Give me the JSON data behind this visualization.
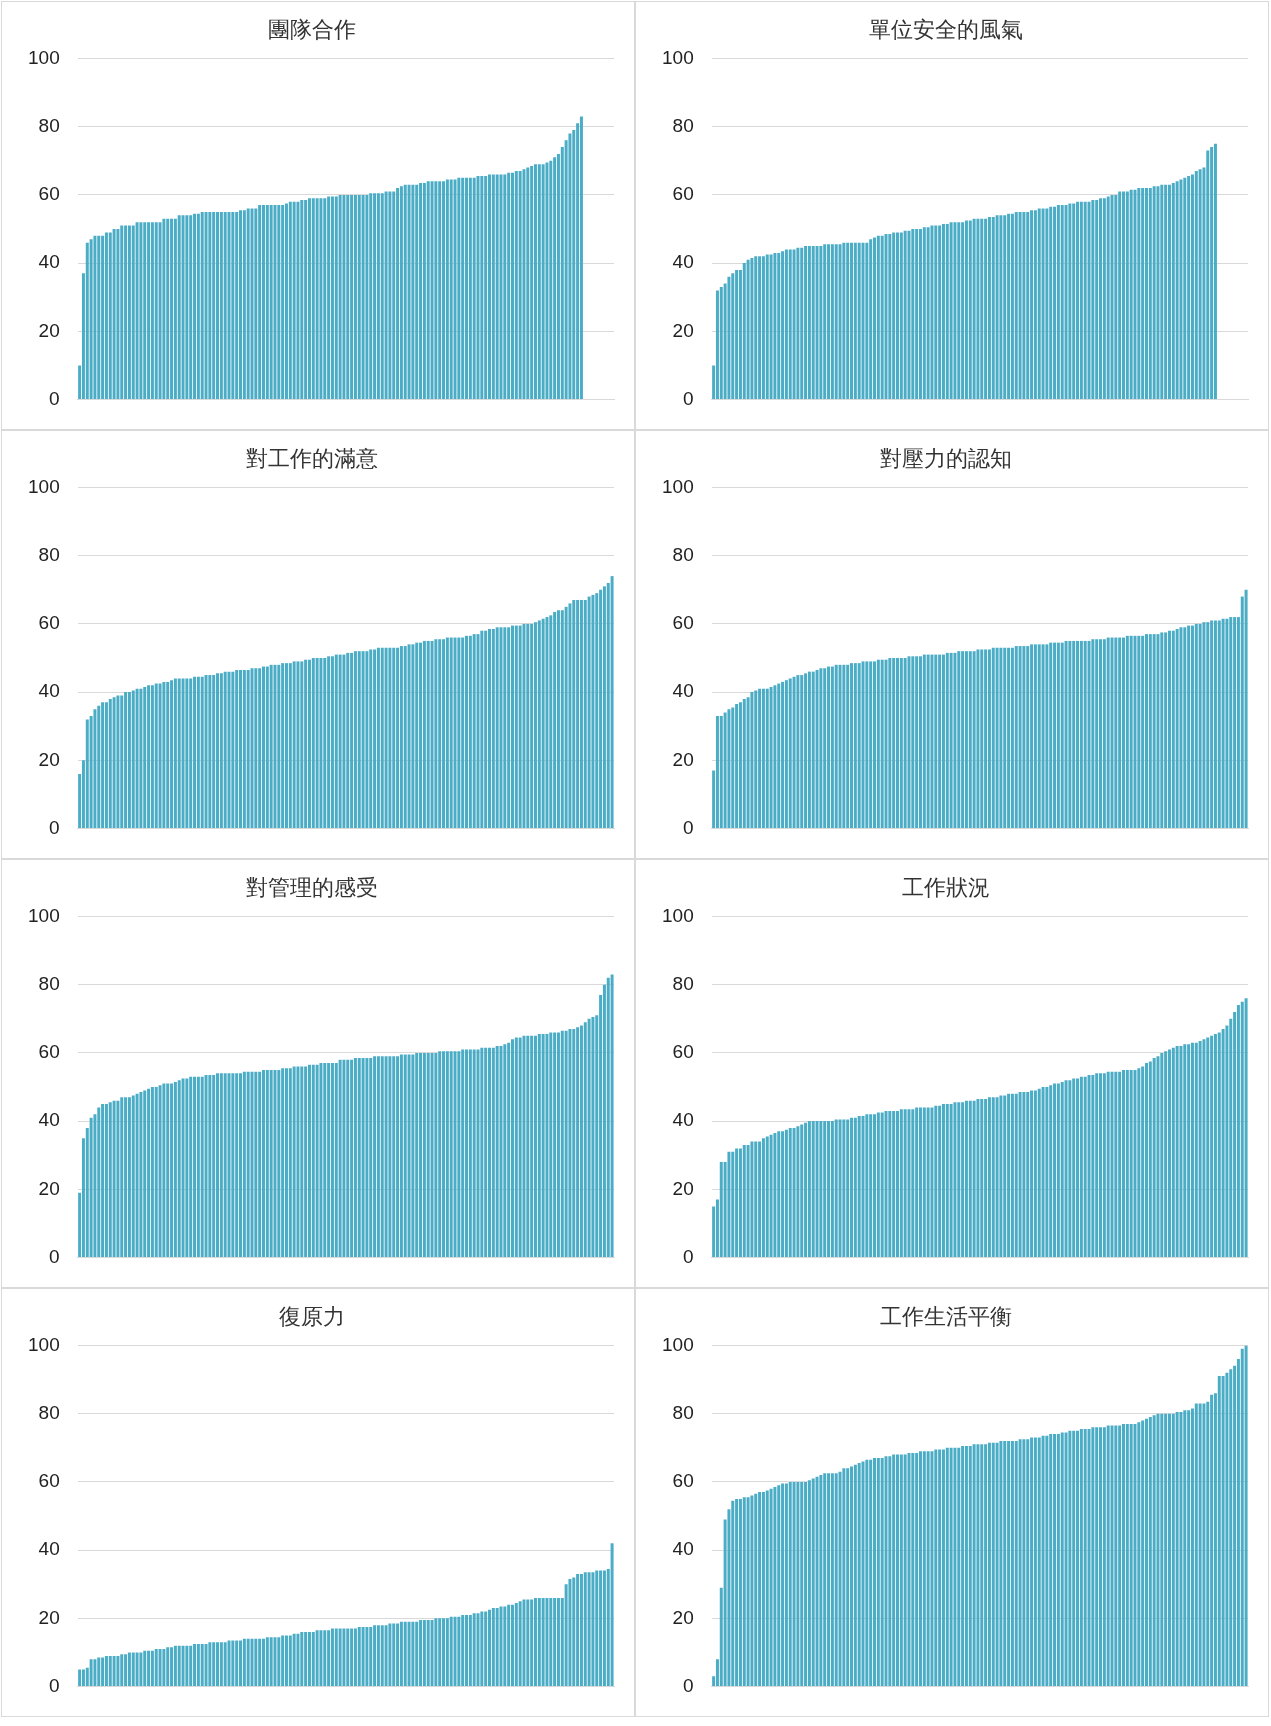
{
  "chart_data": [
    {
      "type": "bar",
      "title": "團隊合作",
      "color": "#4bacc6",
      "ylim": [
        0,
        100
      ],
      "yticks": [
        0,
        20,
        40,
        60,
        80,
        100
      ],
      "grid": "y",
      "tick_labels": "y",
      "categories": [
        null,
        null,
        null,
        null,
        null,
        null,
        null,
        null,
        null,
        null,
        null,
        null,
        null,
        null,
        null,
        null,
        null,
        null,
        null,
        null,
        null,
        null,
        null,
        null,
        null,
        null,
        null,
        null,
        null,
        null,
        null,
        null,
        null,
        null,
        null,
        null,
        null,
        null,
        null,
        null,
        null,
        null,
        null,
        null,
        null,
        null,
        null,
        null,
        null,
        null,
        null,
        null,
        null,
        null,
        null,
        null,
        null,
        null,
        null,
        null,
        null,
        null,
        null,
        null,
        null,
        null,
        null,
        null,
        null,
        null,
        null,
        null,
        null,
        null,
        null,
        null,
        null,
        null,
        null,
        null,
        null,
        null,
        null,
        null,
        null,
        null,
        null,
        null,
        null,
        null,
        null,
        null,
        null,
        null,
        null,
        null,
        null,
        null,
        null,
        null,
        null,
        null,
        null,
        null,
        null,
        null,
        null,
        null,
        null,
        null,
        null,
        null,
        null,
        null,
        null,
        null,
        null,
        null,
        null,
        null,
        null,
        null,
        null,
        null,
        null,
        null,
        null,
        null,
        null,
        null,
        null,
        null,
        null,
        null,
        null,
        null,
        null,
        null,
        null,
        null
      ],
      "values": [
        10,
        37,
        46,
        47,
        48,
        48,
        48,
        49,
        49,
        50,
        50,
        51,
        51,
        51,
        51,
        52,
        52,
        52,
        52,
        52,
        52,
        52,
        53,
        53,
        53,
        53,
        54,
        54,
        54,
        54,
        54.5,
        54.5,
        55,
        55,
        55,
        55,
        55,
        55,
        55,
        55,
        55,
        55,
        55.5,
        55.5,
        56,
        56,
        56,
        57,
        57,
        57,
        57,
        57,
        57,
        57,
        57.5,
        58,
        58,
        58,
        58.5,
        58.5,
        59,
        59,
        59,
        59,
        59,
        59.5,
        59.5,
        59.5,
        60,
        60,
        60,
        60,
        60,
        60,
        60,
        60,
        60.5,
        60.5,
        60.5,
        60.5,
        61,
        61,
        61,
        62,
        62.5,
        63,
        63,
        63,
        63,
        63.5,
        63.5,
        64,
        64,
        64,
        64,
        64,
        64.5,
        64.5,
        64.5,
        65,
        65,
        65,
        65,
        65,
        65.5,
        65.5,
        65.5,
        66,
        66,
        66,
        66,
        66,
        66.5,
        66.5,
        67,
        67,
        67.5,
        68,
        68.5,
        69,
        69,
        69,
        69.5,
        70,
        71,
        72,
        74,
        76,
        78,
        79,
        81,
        83,
        null,
        null,
        null,
        null,
        null,
        null,
        null,
        null
      ]
    },
    {
      "type": "bar",
      "title": "單位安全的風氣",
      "color": "#4bacc6",
      "ylim": [
        0,
        100
      ],
      "yticks": [
        0,
        20,
        40,
        60,
        80,
        100
      ],
      "grid": "y",
      "tick_labels": "y",
      "categories": [
        null,
        null,
        null,
        null,
        null,
        null,
        null,
        null,
        null,
        null,
        null,
        null,
        null,
        null,
        null,
        null,
        null,
        null,
        null,
        null,
        null,
        null,
        null,
        null,
        null,
        null,
        null,
        null,
        null,
        null,
        null,
        null,
        null,
        null,
        null,
        null,
        null,
        null,
        null,
        null,
        null,
        null,
        null,
        null,
        null,
        null,
        null,
        null,
        null,
        null,
        null,
        null,
        null,
        null,
        null,
        null,
        null,
        null,
        null,
        null,
        null,
        null,
        null,
        null,
        null,
        null,
        null,
        null,
        null,
        null,
        null,
        null,
        null,
        null,
        null,
        null,
        null,
        null,
        null,
        null,
        null,
        null,
        null,
        null,
        null,
        null,
        null,
        null,
        null,
        null,
        null,
        null,
        null,
        null,
        null,
        null,
        null,
        null,
        null,
        null,
        null,
        null,
        null,
        null,
        null,
        null,
        null,
        null,
        null,
        null,
        null,
        null,
        null,
        null,
        null,
        null,
        null,
        null,
        null,
        null,
        null,
        null,
        null,
        null,
        null,
        null,
        null,
        null,
        null,
        null,
        null,
        null,
        null,
        null,
        null,
        null,
        null,
        null,
        null,
        null
      ],
      "values": [
        10,
        32,
        33,
        34,
        36,
        37,
        38,
        38,
        40,
        41,
        41.5,
        42,
        42,
        42,
        42.5,
        42.5,
        43,
        43,
        43.5,
        44,
        44,
        44,
        44.5,
        44.5,
        45,
        45,
        45,
        45,
        45,
        45.5,
        45.5,
        45.5,
        45.5,
        45.5,
        46,
        46,
        46,
        46,
        46,
        46,
        46,
        47,
        47.5,
        48,
        48,
        48.5,
        48.5,
        49,
        49,
        49,
        49.5,
        49.5,
        50,
        50,
        50,
        50.5,
        50.5,
        51,
        51,
        51,
        51.5,
        51.5,
        52,
        52,
        52,
        52,
        52.5,
        52.5,
        53,
        53,
        53,
        53,
        53.5,
        53.5,
        54,
        54,
        54,
        54.5,
        54.5,
        55,
        55,
        55,
        55,
        55.5,
        55.5,
        56,
        56,
        56,
        56.5,
        56.5,
        57,
        57,
        57,
        57.5,
        57.5,
        58,
        58,
        58,
        58,
        58.5,
        58.5,
        59,
        59,
        59.5,
        60,
        60,
        61,
        61,
        61,
        61.5,
        61.5,
        62,
        62,
        62,
        62,
        62.5,
        62.5,
        63,
        63,
        63,
        63.5,
        64,
        64.5,
        65,
        65.5,
        66,
        67,
        67.5,
        68,
        73,
        74,
        75,
        null,
        null,
        null,
        null,
        null,
        null,
        null,
        null
      ]
    },
    {
      "type": "bar",
      "title": "對工作的滿意",
      "color": "#4bacc6",
      "ylim": [
        0,
        100
      ],
      "yticks": [
        0,
        20,
        40,
        60,
        80,
        100
      ],
      "grid": "y",
      "tick_labels": "y",
      "categories": [
        null,
        null,
        null,
        null,
        null,
        null,
        null,
        null,
        null,
        null,
        null,
        null,
        null,
        null,
        null,
        null,
        null,
        null,
        null,
        null,
        null,
        null,
        null,
        null,
        null,
        null,
        null,
        null,
        null,
        null,
        null,
        null,
        null,
        null,
        null,
        null,
        null,
        null,
        null,
        null,
        null,
        null,
        null,
        null,
        null,
        null,
        null,
        null,
        null,
        null,
        null,
        null,
        null,
        null,
        null,
        null,
        null,
        null,
        null,
        null,
        null,
        null,
        null,
        null,
        null,
        null,
        null,
        null,
        null,
        null,
        null,
        null,
        null,
        null,
        null,
        null,
        null,
        null,
        null,
        null,
        null,
        null,
        null,
        null,
        null,
        null,
        null,
        null,
        null,
        null,
        null,
        null,
        null,
        null,
        null,
        null,
        null,
        null,
        null,
        null,
        null,
        null,
        null,
        null,
        null,
        null,
        null,
        null,
        null,
        null,
        null,
        null,
        null,
        null,
        null,
        null,
        null,
        null,
        null,
        null,
        null,
        null,
        null,
        null,
        null,
        null,
        null,
        null,
        null,
        null,
        null,
        null,
        null,
        null,
        null,
        null,
        null,
        null,
        null,
        null
      ],
      "values": [
        16,
        20,
        32,
        33,
        35,
        36,
        37,
        37,
        38,
        38.5,
        39,
        39,
        40,
        40,
        40.5,
        41,
        41,
        41.5,
        42,
        42,
        42.5,
        42.5,
        43,
        43,
        43.5,
        44,
        44,
        44,
        44,
        44,
        44.5,
        44.5,
        44.5,
        45,
        45,
        45,
        45.5,
        45.5,
        46,
        46,
        46,
        46.5,
        46.5,
        46.5,
        46.5,
        47,
        47,
        47,
        47.5,
        47.5,
        48,
        48,
        48,
        48.5,
        48.5,
        48.5,
        49,
        49,
        49,
        49.5,
        49.5,
        50,
        50,
        50,
        50,
        50.5,
        50.5,
        51,
        51,
        51,
        51.5,
        51.5,
        52,
        52,
        52,
        52,
        52.5,
        52.5,
        53,
        53,
        53,
        53,
        53,
        53,
        53.5,
        53.5,
        54,
        54,
        54.5,
        54.5,
        55,
        55,
        55,
        55.5,
        55.5,
        55.5,
        56,
        56,
        56,
        56,
        56,
        56.5,
        56.5,
        57,
        57,
        58,
        58,
        58.5,
        58.5,
        59,
        59,
        59,
        59,
        59.5,
        59.5,
        59.5,
        60,
        60,
        60,
        60.5,
        61,
        61.5,
        62,
        62.5,
        63.5,
        64,
        64,
        65,
        66,
        67,
        67,
        67,
        67,
        68,
        68.5,
        69,
        70,
        71,
        72,
        74
      ]
    },
    {
      "type": "bar",
      "title": "對壓力的認知",
      "color": "#4bacc6",
      "ylim": [
        0,
        100
      ],
      "yticks": [
        0,
        20,
        40,
        60,
        80,
        100
      ],
      "grid": "y",
      "tick_labels": "y",
      "categories": [
        null,
        null,
        null,
        null,
        null,
        null,
        null,
        null,
        null,
        null,
        null,
        null,
        null,
        null,
        null,
        null,
        null,
        null,
        null,
        null,
        null,
        null,
        null,
        null,
        null,
        null,
        null,
        null,
        null,
        null,
        null,
        null,
        null,
        null,
        null,
        null,
        null,
        null,
        null,
        null,
        null,
        null,
        null,
        null,
        null,
        null,
        null,
        null,
        null,
        null,
        null,
        null,
        null,
        null,
        null,
        null,
        null,
        null,
        null,
        null,
        null,
        null,
        null,
        null,
        null,
        null,
        null,
        null,
        null,
        null,
        null,
        null,
        null,
        null,
        null,
        null,
        null,
        null,
        null,
        null,
        null,
        null,
        null,
        null,
        null,
        null,
        null,
        null,
        null,
        null,
        null,
        null,
        null,
        null,
        null,
        null,
        null,
        null,
        null,
        null,
        null,
        null,
        null,
        null,
        null,
        null,
        null,
        null,
        null,
        null,
        null,
        null,
        null,
        null,
        null,
        null,
        null,
        null,
        null,
        null,
        null,
        null,
        null,
        null,
        null,
        null,
        null,
        null,
        null,
        null,
        null,
        null,
        null,
        null,
        null,
        null,
        null,
        null,
        null,
        null
      ],
      "values": [
        17,
        33,
        33,
        34,
        35,
        35.5,
        36.5,
        37,
        38,
        38.5,
        40,
        40.5,
        41,
        41,
        41,
        41.5,
        42,
        42.5,
        43,
        43.5,
        44,
        44.5,
        45,
        45,
        45.5,
        46,
        46,
        46.5,
        47,
        47,
        47.5,
        47.5,
        48,
        48,
        48,
        48,
        48.5,
        48.5,
        48.5,
        49,
        49,
        49,
        49,
        49.5,
        49.5,
        49.5,
        50,
        50,
        50,
        50,
        50,
        50.5,
        50.5,
        50.5,
        50.5,
        51,
        51,
        51,
        51,
        51,
        51,
        51.5,
        51.5,
        51.5,
        52,
        52,
        52,
        52,
        52,
        52.5,
        52.5,
        52.5,
        52.5,
        53,
        53,
        53,
        53,
        53,
        53,
        53.5,
        53.5,
        53.5,
        53.5,
        54,
        54,
        54,
        54,
        54,
        54.5,
        54.5,
        54.5,
        54.5,
        55,
        55,
        55,
        55,
        55,
        55,
        55,
        55.5,
        55.5,
        55.5,
        55.5,
        56,
        56,
        56,
        56,
        56,
        56.5,
        56.5,
        56.5,
        56.5,
        56.5,
        57,
        57,
        57,
        57,
        57.5,
        57.5,
        58,
        58,
        58.5,
        59,
        59,
        59.5,
        59.5,
        60,
        60,
        60.5,
        60.5,
        61,
        61,
        61,
        61.5,
        61.5,
        62,
        62,
        62,
        68,
        70
      ]
    },
    {
      "type": "bar",
      "title": "對管理的感受",
      "color": "#4bacc6",
      "ylim": [
        0,
        100
      ],
      "yticks": [
        0,
        20,
        40,
        60,
        80,
        100
      ],
      "grid": "y",
      "tick_labels": "y",
      "categories": [
        null,
        null,
        null,
        null,
        null,
        null,
        null,
        null,
        null,
        null,
        null,
        null,
        null,
        null,
        null,
        null,
        null,
        null,
        null,
        null,
        null,
        null,
        null,
        null,
        null,
        null,
        null,
        null,
        null,
        null,
        null,
        null,
        null,
        null,
        null,
        null,
        null,
        null,
        null,
        null,
        null,
        null,
        null,
        null,
        null,
        null,
        null,
        null,
        null,
        null,
        null,
        null,
        null,
        null,
        null,
        null,
        null,
        null,
        null,
        null,
        null,
        null,
        null,
        null,
        null,
        null,
        null,
        null,
        null,
        null,
        null,
        null,
        null,
        null,
        null,
        null,
        null,
        null,
        null,
        null,
        null,
        null,
        null,
        null,
        null,
        null,
        null,
        null,
        null,
        null,
        null,
        null,
        null,
        null,
        null,
        null,
        null,
        null,
        null,
        null,
        null,
        null,
        null,
        null,
        null,
        null,
        null,
        null,
        null,
        null,
        null,
        null,
        null,
        null,
        null,
        null,
        null,
        null,
        null,
        null,
        null,
        null,
        null,
        null,
        null,
        null,
        null,
        null,
        null,
        null,
        null,
        null,
        null,
        null,
        null,
        null,
        null,
        null,
        null,
        null
      ],
      "values": [
        19,
        35,
        38,
        41,
        42,
        44,
        45,
        45,
        45.5,
        46,
        46,
        47,
        47,
        47,
        47.5,
        48,
        48.5,
        49,
        49.5,
        50,
        50,
        50.5,
        51,
        51,
        51,
        51.5,
        52,
        52.5,
        52.5,
        53,
        53,
        53,
        53,
        53.5,
        53.5,
        53.5,
        54,
        54,
        54,
        54,
        54,
        54,
        54,
        54.5,
        54.5,
        54.5,
        54.5,
        54.5,
        55,
        55,
        55,
        55,
        55,
        55.5,
        55.5,
        55.5,
        56,
        56,
        56,
        56,
        56.5,
        56.5,
        56.5,
        57,
        57,
        57,
        57,
        57,
        58,
        58,
        58,
        58,
        58.5,
        58.5,
        58.5,
        58.5,
        58.5,
        59,
        59,
        59,
        59,
        59,
        59,
        59,
        59.5,
        59.5,
        59.5,
        59.5,
        60,
        60,
        60,
        60,
        60,
        60,
        60.5,
        60.5,
        60.5,
        60.5,
        60.5,
        60.5,
        61,
        61,
        61,
        61,
        61,
        61.5,
        61.5,
        61.5,
        61.5,
        62,
        62,
        62.5,
        63,
        64,
        64.5,
        64.5,
        65,
        65,
        65,
        65,
        65.5,
        65.5,
        65.5,
        66,
        66,
        66,
        66.5,
        66.5,
        67,
        67,
        67.5,
        68,
        69,
        70,
        70.5,
        71,
        77,
        80,
        82,
        83
      ]
    },
    {
      "type": "bar",
      "title": "工作狀況",
      "color": "#4bacc6",
      "ylim": [
        0,
        100
      ],
      "yticks": [
        0,
        20,
        40,
        60,
        80,
        100
      ],
      "grid": "y",
      "tick_labels": "y",
      "categories": [
        null,
        null,
        null,
        null,
        null,
        null,
        null,
        null,
        null,
        null,
        null,
        null,
        null,
        null,
        null,
        null,
        null,
        null,
        null,
        null,
        null,
        null,
        null,
        null,
        null,
        null,
        null,
        null,
        null,
        null,
        null,
        null,
        null,
        null,
        null,
        null,
        null,
        null,
        null,
        null,
        null,
        null,
        null,
        null,
        null,
        null,
        null,
        null,
        null,
        null,
        null,
        null,
        null,
        null,
        null,
        null,
        null,
        null,
        null,
        null,
        null,
        null,
        null,
        null,
        null,
        null,
        null,
        null,
        null,
        null,
        null,
        null,
        null,
        null,
        null,
        null,
        null,
        null,
        null,
        null,
        null,
        null,
        null,
        null,
        null,
        null,
        null,
        null,
        null,
        null,
        null,
        null,
        null,
        null,
        null,
        null,
        null,
        null,
        null,
        null,
        null,
        null,
        null,
        null,
        null,
        null,
        null,
        null,
        null,
        null,
        null,
        null,
        null,
        null,
        null,
        null,
        null,
        null,
        null,
        null,
        null,
        null,
        null,
        null,
        null,
        null,
        null,
        null,
        null,
        null,
        null,
        null,
        null,
        null,
        null,
        null,
        null,
        null,
        null,
        null
      ],
      "values": [
        15,
        17,
        28,
        28,
        31,
        31,
        32,
        32,
        33,
        33,
        34,
        34,
        34,
        35,
        35.5,
        36,
        36.5,
        37,
        37,
        37.5,
        38,
        38,
        38.5,
        39,
        39.5,
        40,
        40,
        40,
        40,
        40,
        40,
        40,
        40.5,
        40.5,
        40.5,
        40.5,
        41,
        41,
        41.5,
        41.5,
        42,
        42,
        42,
        42.5,
        42.5,
        43,
        43,
        43,
        43,
        43.5,
        43.5,
        43.5,
        43.5,
        44,
        44,
        44,
        44,
        44,
        44.5,
        44.5,
        45,
        45,
        45,
        45.5,
        45.5,
        45.5,
        46,
        46,
        46,
        46.5,
        46.5,
        46.5,
        47,
        47,
        47,
        47.5,
        47.5,
        48,
        48,
        48,
        48.5,
        48.5,
        48.5,
        49,
        49,
        49.5,
        50,
        50,
        50.5,
        51,
        51,
        51.5,
        52,
        52,
        52.5,
        52.5,
        53,
        53,
        53.5,
        53.5,
        54,
        54,
        54,
        54.5,
        54.5,
        54.5,
        54.5,
        55,
        55,
        55,
        55,
        55.5,
        56,
        57,
        57.5,
        58.5,
        59,
        60,
        60.5,
        61,
        61.5,
        62,
        62,
        62.5,
        62.5,
        63,
        63,
        63.5,
        64,
        64.5,
        65,
        65.5,
        66,
        67,
        68,
        70,
        72,
        74,
        75,
        76
      ]
    },
    {
      "type": "bar",
      "title": "復原力",
      "color": "#4bacc6",
      "ylim": [
        0,
        100
      ],
      "yticks": [
        0,
        20,
        40,
        60,
        80,
        100
      ],
      "grid": "y",
      "tick_labels": "y",
      "categories": [
        null,
        null,
        null,
        null,
        null,
        null,
        null,
        null,
        null,
        null,
        null,
        null,
        null,
        null,
        null,
        null,
        null,
        null,
        null,
        null,
        null,
        null,
        null,
        null,
        null,
        null,
        null,
        null,
        null,
        null,
        null,
        null,
        null,
        null,
        null,
        null,
        null,
        null,
        null,
        null,
        null,
        null,
        null,
        null,
        null,
        null,
        null,
        null,
        null,
        null,
        null,
        null,
        null,
        null,
        null,
        null,
        null,
        null,
        null,
        null,
        null,
        null,
        null,
        null,
        null,
        null,
        null,
        null,
        null,
        null,
        null,
        null,
        null,
        null,
        null,
        null,
        null,
        null,
        null,
        null,
        null,
        null,
        null,
        null,
        null,
        null,
        null,
        null,
        null,
        null,
        null,
        null,
        null,
        null,
        null,
        null,
        null,
        null,
        null,
        null,
        null,
        null,
        null,
        null,
        null,
        null,
        null,
        null,
        null,
        null,
        null,
        null,
        null,
        null,
        null,
        null,
        null,
        null,
        null,
        null,
        null,
        null,
        null,
        null,
        null,
        null,
        null,
        null,
        null,
        null,
        null,
        null,
        null,
        null,
        null,
        null,
        null,
        null,
        null,
        null
      ],
      "values": [
        5,
        5,
        5.5,
        8,
        8,
        8.5,
        8.5,
        9,
        9,
        9,
        9,
        9.5,
        9.5,
        10,
        10,
        10,
        10,
        10.5,
        10.5,
        10.5,
        11,
        11,
        11,
        11.5,
        11.5,
        12,
        12,
        12,
        12,
        12,
        12.5,
        12.5,
        12.5,
        12.5,
        13,
        13,
        13,
        13,
        13,
        13.5,
        13.5,
        13.5,
        13.5,
        14,
        14,
        14,
        14,
        14,
        14,
        14.5,
        14.5,
        14.5,
        14.5,
        15,
        15,
        15,
        15.5,
        15.5,
        16,
        16,
        16,
        16,
        16.5,
        16.5,
        16.5,
        16.5,
        17,
        17,
        17,
        17,
        17,
        17,
        17,
        17.5,
        17.5,
        17.5,
        17.5,
        18,
        18,
        18,
        18,
        18.5,
        18.5,
        18.5,
        19,
        19,
        19,
        19,
        19,
        19.5,
        19.5,
        19.5,
        19.5,
        20,
        20,
        20,
        20,
        20.5,
        20.5,
        20.5,
        21,
        21,
        21,
        21.5,
        21.5,
        22,
        22,
        22.5,
        23,
        23,
        23.5,
        23.5,
        24,
        24,
        24.5,
        25,
        25.5,
        25.5,
        25.5,
        26,
        26,
        26,
        26,
        26,
        26,
        26,
        26,
        30,
        31.5,
        32,
        33,
        33,
        33.5,
        33.5,
        33.5,
        34,
        34,
        34,
        34.5,
        42
      ]
    },
    {
      "type": "bar",
      "title": "工作生活平衡",
      "color": "#4bacc6",
      "ylim": [
        0,
        100
      ],
      "yticks": [
        0,
        20,
        40,
        60,
        80,
        100
      ],
      "grid": "y",
      "tick_labels": "y",
      "categories": [
        null,
        null,
        null,
        null,
        null,
        null,
        null,
        null,
        null,
        null,
        null,
        null,
        null,
        null,
        null,
        null,
        null,
        null,
        null,
        null,
        null,
        null,
        null,
        null,
        null,
        null,
        null,
        null,
        null,
        null,
        null,
        null,
        null,
        null,
        null,
        null,
        null,
        null,
        null,
        null,
        null,
        null,
        null,
        null,
        null,
        null,
        null,
        null,
        null,
        null,
        null,
        null,
        null,
        null,
        null,
        null,
        null,
        null,
        null,
        null,
        null,
        null,
        null,
        null,
        null,
        null,
        null,
        null,
        null,
        null,
        null,
        null,
        null,
        null,
        null,
        null,
        null,
        null,
        null,
        null,
        null,
        null,
        null,
        null,
        null,
        null,
        null,
        null,
        null,
        null,
        null,
        null,
        null,
        null,
        null,
        null,
        null,
        null,
        null,
        null,
        null,
        null,
        null,
        null,
        null,
        null,
        null,
        null,
        null,
        null,
        null,
        null,
        null,
        null,
        null,
        null,
        null,
        null,
        null,
        null,
        null,
        null,
        null,
        null,
        null,
        null,
        null,
        null,
        null,
        null,
        null,
        null,
        null,
        null,
        null,
        null,
        null,
        null,
        null,
        null
      ],
      "values": [
        3,
        8,
        29,
        49,
        52,
        54.5,
        55,
        55,
        55.5,
        55.5,
        56,
        56.5,
        57,
        57,
        57.5,
        58,
        58.5,
        59,
        59.5,
        59.5,
        60,
        60,
        60,
        60,
        60,
        60.5,
        61,
        61.5,
        62,
        62.5,
        62.5,
        62.5,
        62.5,
        63,
        64,
        64,
        64.5,
        65,
        65.5,
        66,
        66.5,
        66.5,
        67,
        67,
        67,
        67.5,
        67.5,
        68,
        68,
        68,
        68,
        68.5,
        68.5,
        68.5,
        69,
        69,
        69,
        69,
        69.5,
        69.5,
        69.5,
        70,
        70,
        70,
        70,
        70.5,
        70.5,
        70.5,
        71,
        71,
        71,
        71,
        71.5,
        71.5,
        71.5,
        72,
        72,
        72,
        72,
        72,
        72.5,
        72.5,
        72.5,
        73,
        73,
        73,
        73.5,
        73.5,
        74,
        74,
        74,
        74.5,
        74.5,
        75,
        75,
        75,
        75.5,
        75.5,
        75.5,
        76,
        76,
        76,
        76,
        76.5,
        76.5,
        76.5,
        76.5,
        77,
        77,
        77,
        77,
        77.5,
        78,
        78.5,
        79,
        79.5,
        80,
        80,
        80,
        80,
        80,
        80.5,
        80.5,
        81,
        81,
        81.5,
        83,
        83,
        83,
        83.5,
        85.5,
        86,
        91,
        91,
        92,
        93,
        94,
        96,
        99,
        100
      ]
    }
  ]
}
